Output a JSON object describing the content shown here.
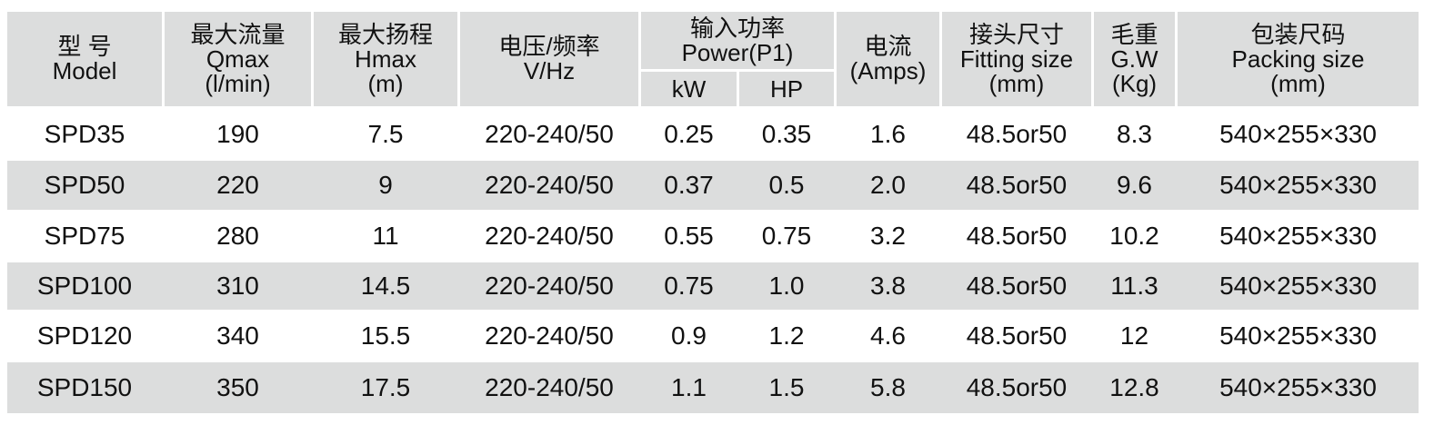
{
  "table": {
    "header": [
      {
        "lines": [
          "型 号",
          "Model"
        ]
      },
      {
        "lines": [
          "最大流量",
          "Qmax",
          "(l/min)"
        ]
      },
      {
        "lines": [
          "最大扬程",
          "Hmax",
          "(m)"
        ]
      },
      {
        "lines": [
          "电压/频率",
          "V/Hz"
        ]
      },
      {
        "lines": [
          "输入功率",
          "Power(P1)"
        ],
        "sub": [
          "kW",
          "HP"
        ]
      },
      {
        "lines": [
          "电流",
          "(Amps)"
        ]
      },
      {
        "lines": [
          "接头尺寸",
          "Fitting size",
          "(mm)"
        ]
      },
      {
        "lines": [
          "毛重",
          "G.W",
          "(Kg)"
        ]
      },
      {
        "lines": [
          "包装尺码",
          "Packing size",
          "(mm)"
        ]
      }
    ],
    "rows": [
      [
        "SPD35",
        "190",
        "7.5",
        "220-240/50",
        "0.25",
        "0.35",
        "1.6",
        "48.5or50",
        "8.3",
        "540×255×330"
      ],
      [
        "SPD50",
        "220",
        "9",
        "220-240/50",
        "0.37",
        "0.5",
        "2.0",
        "48.5or50",
        "9.6",
        "540×255×330"
      ],
      [
        "SPD75",
        "280",
        "11",
        "220-240/50",
        "0.55",
        "0.75",
        "3.2",
        "48.5or50",
        "10.2",
        "540×255×330"
      ],
      [
        "SPD100",
        "310",
        "14.5",
        "220-240/50",
        "0.75",
        "1.0",
        "3.8",
        "48.5or50",
        "11.3",
        "540×255×330"
      ],
      [
        "SPD120",
        "340",
        "15.5",
        "220-240/50",
        "0.9",
        "1.2",
        "4.6",
        "48.5or50",
        "12",
        "540×255×330"
      ],
      [
        "SPD150",
        "350",
        "17.5",
        "220-240/50",
        "1.1",
        "1.5",
        "5.8",
        "48.5or50",
        "12.8",
        "540×255×330"
      ]
    ]
  }
}
